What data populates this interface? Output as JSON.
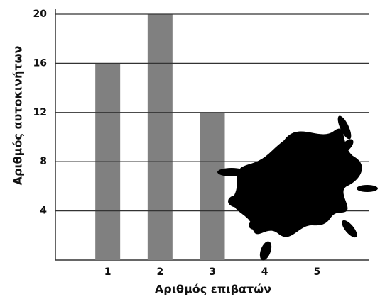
{
  "chart_data": {
    "type": "bar",
    "x": [
      1,
      2,
      3,
      4,
      5
    ],
    "values": [
      16,
      20,
      12,
      null,
      null
    ],
    "color": "#808080",
    "xlim": [
      0,
      6
    ],
    "xticks": [
      1,
      2,
      3,
      4,
      5
    ],
    "ylim": [
      0,
      20
    ],
    "yticks": [
      4,
      8,
      12,
      16,
      20
    ],
    "grid": true,
    "xlabel": "Αριθμός επιβατών",
    "ylabel": "Αριθμός αυτοκινήτων"
  }
}
